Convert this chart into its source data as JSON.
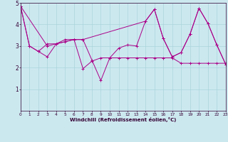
{
  "xlabel": "Windchill (Refroidissement éolien,°C)",
  "xlim": [
    0,
    23
  ],
  "ylim": [
    0,
    5
  ],
  "bg_color": "#cce8ef",
  "grid_color": "#aad4db",
  "line_color": "#aa0088",
  "line1_x": [
    0,
    1,
    2,
    3,
    4,
    5,
    6,
    7,
    8,
    9,
    10,
    11,
    12,
    13,
    14,
    15,
    16,
    17,
    18,
    19,
    20,
    21,
    22,
    23
  ],
  "line1_y": [
    4.85,
    3.0,
    2.75,
    3.1,
    3.1,
    3.2,
    3.3,
    1.95,
    2.3,
    2.45,
    2.45,
    2.45,
    2.45,
    2.45,
    2.45,
    2.45,
    2.45,
    2.45,
    2.2,
    2.2,
    2.2,
    2.2,
    2.2,
    2.2
  ],
  "line2_x": [
    0,
    1,
    2,
    3,
    4,
    5,
    6,
    7,
    8,
    9,
    10,
    11,
    12,
    13,
    14,
    15,
    16,
    17,
    18,
    19,
    20,
    21,
    22,
    23
  ],
  "line2_y": [
    4.85,
    3.0,
    2.75,
    2.5,
    3.1,
    3.3,
    3.3,
    3.3,
    2.35,
    1.4,
    2.45,
    2.9,
    3.05,
    3.0,
    4.15,
    4.7,
    3.35,
    2.5,
    2.7,
    3.55,
    4.75,
    4.05,
    3.05,
    2.15
  ],
  "line3_x": [
    0,
    3,
    6,
    7,
    14,
    15,
    16,
    17,
    18,
    19,
    20,
    21,
    22,
    23
  ],
  "line3_y": [
    4.85,
    3.0,
    3.3,
    3.3,
    4.15,
    4.7,
    3.35,
    2.5,
    2.7,
    3.55,
    4.75,
    4.05,
    3.05,
    2.15
  ],
  "xtick_labels": [
    "0",
    "1",
    "2",
    "3",
    "4",
    "5",
    "6",
    "7",
    "8",
    "9",
    "10",
    "11",
    "12",
    "13",
    "14",
    "15",
    "16",
    "17",
    "18",
    "19",
    "20",
    "21",
    "22",
    "23"
  ],
  "ytick_labels": [
    "1",
    "2",
    "3",
    "4",
    "5"
  ],
  "ytick_vals": [
    1,
    2,
    3,
    4,
    5
  ]
}
